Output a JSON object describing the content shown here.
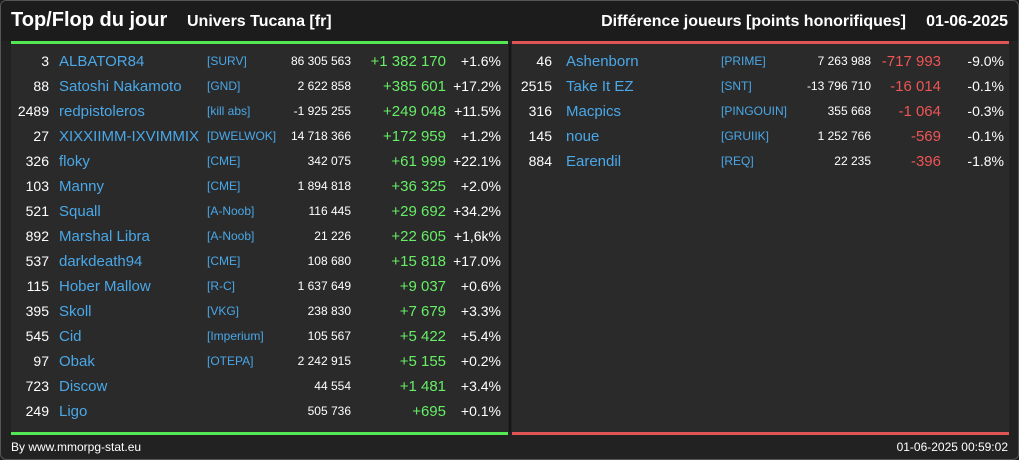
{
  "header": {
    "title": "Top/Flop du jour",
    "universe": "Univers Tucana [fr]",
    "metric": "Différence joueurs [points honorifiques]",
    "date": "01-06-2025"
  },
  "colors": {
    "gain": "#66ee66",
    "loss": "#ee5555",
    "link": "#4aa8e8",
    "top_bar": "#55e855",
    "flop_bar": "#e05555"
  },
  "top": [
    {
      "rank": "3",
      "name": "ALBATOR84",
      "alliance": "[SURV]",
      "points": "86 305 563",
      "diff": "+1 382 170",
      "pct": "+1.6%"
    },
    {
      "rank": "88",
      "name": "Satoshi Nakamoto",
      "alliance": "[GND]",
      "points": "2 622 858",
      "diff": "+385 601",
      "pct": "+17.2%"
    },
    {
      "rank": "2489",
      "name": "redpistoleros",
      "alliance": "[kill abs]",
      "points": "-1 925 255",
      "diff": "+249 048",
      "pct": "+11.5%"
    },
    {
      "rank": "27",
      "name": "XIXXIIMM-IXVIMMIX",
      "alliance": "[DWELWOK]",
      "points": "14 718 366",
      "diff": "+172 959",
      "pct": "+1.2%"
    },
    {
      "rank": "326",
      "name": "floky",
      "alliance": "[CME]",
      "points": "342 075",
      "diff": "+61 999",
      "pct": "+22.1%"
    },
    {
      "rank": "103",
      "name": "Manny",
      "alliance": "[CME]",
      "points": "1 894 818",
      "diff": "+36 325",
      "pct": "+2.0%"
    },
    {
      "rank": "521",
      "name": "Squall",
      "alliance": "[A-Noob]",
      "points": "116 445",
      "diff": "+29 692",
      "pct": "+34.2%"
    },
    {
      "rank": "892",
      "name": "Marshal Libra",
      "alliance": "[A-Noob]",
      "points": "21 226",
      "diff": "+22 605",
      "pct": "+1,6k%"
    },
    {
      "rank": "537",
      "name": "darkdeath94",
      "alliance": "[CME]",
      "points": "108 680",
      "diff": "+15 818",
      "pct": "+17.0%"
    },
    {
      "rank": "115",
      "name": "Hober Mallow",
      "alliance": "[R-C]",
      "points": "1 637 649",
      "diff": "+9 037",
      "pct": "+0.6%"
    },
    {
      "rank": "395",
      "name": "Skoll",
      "alliance": "[VKG]",
      "points": "238 830",
      "diff": "+7 679",
      "pct": "+3.3%"
    },
    {
      "rank": "545",
      "name": "Cid",
      "alliance": "[Imperium]",
      "points": "105 567",
      "diff": "+5 422",
      "pct": "+5.4%"
    },
    {
      "rank": "97",
      "name": "Obak",
      "alliance": "[OTEPA]",
      "points": "2 242 915",
      "diff": "+5 155",
      "pct": "+0.2%"
    },
    {
      "rank": "723",
      "name": "Discow",
      "alliance": "",
      "points": "44 554",
      "diff": "+1 481",
      "pct": "+3.4%"
    },
    {
      "rank": "249",
      "name": "Ligo",
      "alliance": "",
      "points": "505 736",
      "diff": "+695",
      "pct": "+0.1%"
    }
  ],
  "flop": [
    {
      "rank": "46",
      "name": "Ashenborn",
      "alliance": "[PRIME]",
      "points": "7 263 988",
      "diff": "-717 993",
      "pct": "-9.0%"
    },
    {
      "rank": "2515",
      "name": "Take It EZ",
      "alliance": "[SNT]",
      "points": "-13 796 710",
      "diff": "-16 014",
      "pct": "-0.1%"
    },
    {
      "rank": "316",
      "name": "Macpics",
      "alliance": "[PINGOUIN]",
      "points": "355 668",
      "diff": "-1 064",
      "pct": "-0.3%"
    },
    {
      "rank": "145",
      "name": "noue",
      "alliance": "[GRUIIK]",
      "points": "1 252 766",
      "diff": "-569",
      "pct": "-0.1%"
    },
    {
      "rank": "884",
      "name": "Earendil",
      "alliance": "[REQ]",
      "points": "22 235",
      "diff": "-396",
      "pct": "-1.8%"
    }
  ],
  "footer": {
    "source": "By www.mmorpg-stat.eu",
    "timestamp": "01-06-2025 00:59:02"
  }
}
